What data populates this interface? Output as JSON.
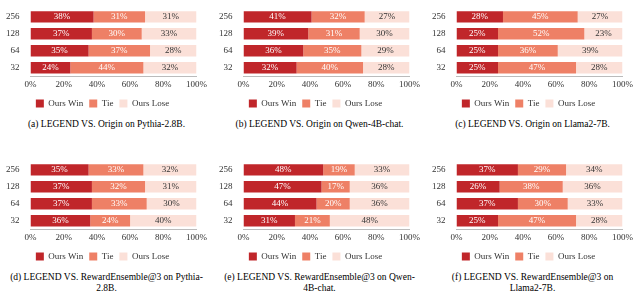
{
  "chart_data": [
    {
      "type": "bar",
      "title": "(a) LEGEND VS. Origin on Pythia-2.8B.",
      "orientation": "horizontal",
      "stacked": true,
      "data_labels": true,
      "legend": "bottom",
      "grid": false,
      "categories": [
        "256",
        "128",
        "64",
        "32"
      ],
      "xlim": [
        0,
        100
      ],
      "xticks": [
        {
          "value": 0,
          "label": "0%"
        },
        {
          "value": 20,
          "label": "20%"
        },
        {
          "value": 40,
          "label": "40%"
        },
        {
          "value": 60,
          "label": "60%"
        },
        {
          "value": 80,
          "label": "80%"
        },
        {
          "value": 100,
          "label": "100%"
        }
      ],
      "series": [
        {
          "name": "Ours Win",
          "color": "#c0262a",
          "values": [
            38,
            37,
            35,
            24
          ],
          "value_labels": [
            "38%",
            "37%",
            "35%",
            "24%"
          ]
        },
        {
          "name": "Tie",
          "color": "#ee8066",
          "values": [
            31,
            30,
            37,
            44
          ],
          "value_labels": [
            "31%",
            "30%",
            "37%",
            "44%"
          ]
        },
        {
          "name": "Ours Lose",
          "color": "#fbe0d8",
          "values": [
            31,
            33,
            28,
            32
          ],
          "value_labels": [
            "31%",
            "33%",
            "28%",
            "32%"
          ]
        }
      ]
    },
    {
      "type": "bar",
      "title": "(b) LEGEND VS. Origin on Qwen-4B-chat.",
      "orientation": "horizontal",
      "stacked": true,
      "data_labels": true,
      "legend": "bottom",
      "grid": false,
      "categories": [
        "256",
        "128",
        "64",
        "32"
      ],
      "xlim": [
        0,
        100
      ],
      "xticks": [
        {
          "value": 0,
          "label": "0%"
        },
        {
          "value": 20,
          "label": "20%"
        },
        {
          "value": 40,
          "label": "40%"
        },
        {
          "value": 60,
          "label": "60%"
        },
        {
          "value": 80,
          "label": "80%"
        },
        {
          "value": 100,
          "label": "100%"
        }
      ],
      "series": [
        {
          "name": "Ours Win",
          "color": "#c0262a",
          "values": [
            41,
            39,
            36,
            32
          ],
          "value_labels": [
            "41%",
            "39%",
            "36%",
            "32%"
          ]
        },
        {
          "name": "Tie",
          "color": "#ee8066",
          "values": [
            32,
            31,
            35,
            40
          ],
          "value_labels": [
            "32%",
            "31%",
            "35%",
            "40%"
          ]
        },
        {
          "name": "Ours Lose",
          "color": "#fbe0d8",
          "values": [
            27,
            30,
            29,
            28
          ],
          "value_labels": [
            "27%",
            "30%",
            "29%",
            "28%"
          ]
        }
      ]
    },
    {
      "type": "bar",
      "title": "(c) LEGEND VS. Origin on Llama2-7B.",
      "orientation": "horizontal",
      "stacked": true,
      "data_labels": true,
      "legend": "bottom",
      "grid": false,
      "categories": [
        "256",
        "128",
        "64",
        "32"
      ],
      "xlim": [
        0,
        100
      ],
      "xticks": [
        {
          "value": 0,
          "label": "0%"
        },
        {
          "value": 20,
          "label": "20%"
        },
        {
          "value": 40,
          "label": "40%"
        },
        {
          "value": 60,
          "label": "60%"
        },
        {
          "value": 80,
          "label": "80%"
        },
        {
          "value": 100,
          "label": "100%"
        }
      ],
      "series": [
        {
          "name": "Ours Win",
          "color": "#c0262a",
          "values": [
            28,
            25,
            25,
            25
          ],
          "value_labels": [
            "28%",
            "25%",
            "25%",
            "25%"
          ]
        },
        {
          "name": "Tie",
          "color": "#ee8066",
          "values": [
            45,
            52,
            36,
            47
          ],
          "value_labels": [
            "45%",
            "52%",
            "36%",
            "47%"
          ]
        },
        {
          "name": "Ours Lose",
          "color": "#fbe0d8",
          "values": [
            27,
            23,
            39,
            28
          ],
          "value_labels": [
            "27%",
            "23%",
            "39%",
            "28%"
          ]
        }
      ]
    },
    {
      "type": "bar",
      "title": "(d) LEGEND VS. RewardEnsemble@3 on Pythia-2.8B.",
      "orientation": "horizontal",
      "stacked": true,
      "data_labels": true,
      "legend": "bottom",
      "grid": false,
      "categories": [
        "256",
        "128",
        "64",
        "32"
      ],
      "xlim": [
        0,
        100
      ],
      "xticks": [
        {
          "value": 0,
          "label": "0%"
        },
        {
          "value": 20,
          "label": "20%"
        },
        {
          "value": 40,
          "label": "40%"
        },
        {
          "value": 60,
          "label": "60%"
        },
        {
          "value": 80,
          "label": "80%"
        },
        {
          "value": 100,
          "label": "100%"
        }
      ],
      "series": [
        {
          "name": "Ours Win",
          "color": "#c0262a",
          "values": [
            35,
            37,
            37,
            36
          ],
          "value_labels": [
            "35%",
            "37%",
            "37%",
            "36%"
          ]
        },
        {
          "name": "Tie",
          "color": "#ee8066",
          "values": [
            33,
            32,
            33,
            24
          ],
          "value_labels": [
            "33%",
            "32%",
            "33%",
            "24%"
          ]
        },
        {
          "name": "Ours Lose",
          "color": "#fbe0d8",
          "values": [
            32,
            31,
            30,
            40
          ],
          "value_labels": [
            "32%",
            "31%",
            "30%",
            "40%"
          ]
        }
      ]
    },
    {
      "type": "bar",
      "title": "(e) LEGEND VS. RewardEnsemble@3 on Qwen-4B-chat.",
      "orientation": "horizontal",
      "stacked": true,
      "data_labels": true,
      "legend": "bottom",
      "grid": false,
      "categories": [
        "256",
        "128",
        "64",
        "32"
      ],
      "xlim": [
        0,
        100
      ],
      "xticks": [
        {
          "value": 0,
          "label": "0%"
        },
        {
          "value": 20,
          "label": "20%"
        },
        {
          "value": 40,
          "label": "40%"
        },
        {
          "value": 60,
          "label": "60%"
        },
        {
          "value": 80,
          "label": "80%"
        },
        {
          "value": 100,
          "label": "100%"
        }
      ],
      "series": [
        {
          "name": "Ours Win",
          "color": "#c0262a",
          "values": [
            48,
            47,
            44,
            31
          ],
          "value_labels": [
            "48%",
            "47%",
            "44%",
            "31%"
          ]
        },
        {
          "name": "Tie",
          "color": "#ee8066",
          "values": [
            19,
            17,
            20,
            21
          ],
          "value_labels": [
            "19%",
            "17%",
            "20%",
            "21%"
          ]
        },
        {
          "name": "Ours Lose",
          "color": "#fbe0d8",
          "values": [
            33,
            36,
            36,
            48
          ],
          "value_labels": [
            "33%",
            "36%",
            "36%",
            "48%"
          ]
        }
      ]
    },
    {
      "type": "bar",
      "title": "(f) LEGEND VS. RewardEnsemble@3 on Llama2-7B.",
      "orientation": "horizontal",
      "stacked": true,
      "data_labels": true,
      "legend": "bottom",
      "grid": false,
      "categories": [
        "256",
        "128",
        "64",
        "32"
      ],
      "xlim": [
        0,
        100
      ],
      "xticks": [
        {
          "value": 0,
          "label": "0%"
        },
        {
          "value": 20,
          "label": "20%"
        },
        {
          "value": 40,
          "label": "40%"
        },
        {
          "value": 60,
          "label": "60%"
        },
        {
          "value": 80,
          "label": "80%"
        },
        {
          "value": 100,
          "label": "100%"
        }
      ],
      "series": [
        {
          "name": "Ours Win",
          "color": "#c0262a",
          "values": [
            37,
            26,
            37,
            25
          ],
          "value_labels": [
            "37%",
            "26%",
            "37%",
            "25%"
          ]
        },
        {
          "name": "Tie",
          "color": "#ee8066",
          "values": [
            29,
            38,
            30,
            47
          ],
          "value_labels": [
            "29%",
            "38%",
            "30%",
            "47%"
          ]
        },
        {
          "name": "Ours Lose",
          "color": "#fbe0d8",
          "values": [
            34,
            36,
            33,
            28
          ],
          "value_labels": [
            "34%",
            "36%",
            "33%",
            "28%"
          ]
        }
      ]
    }
  ]
}
